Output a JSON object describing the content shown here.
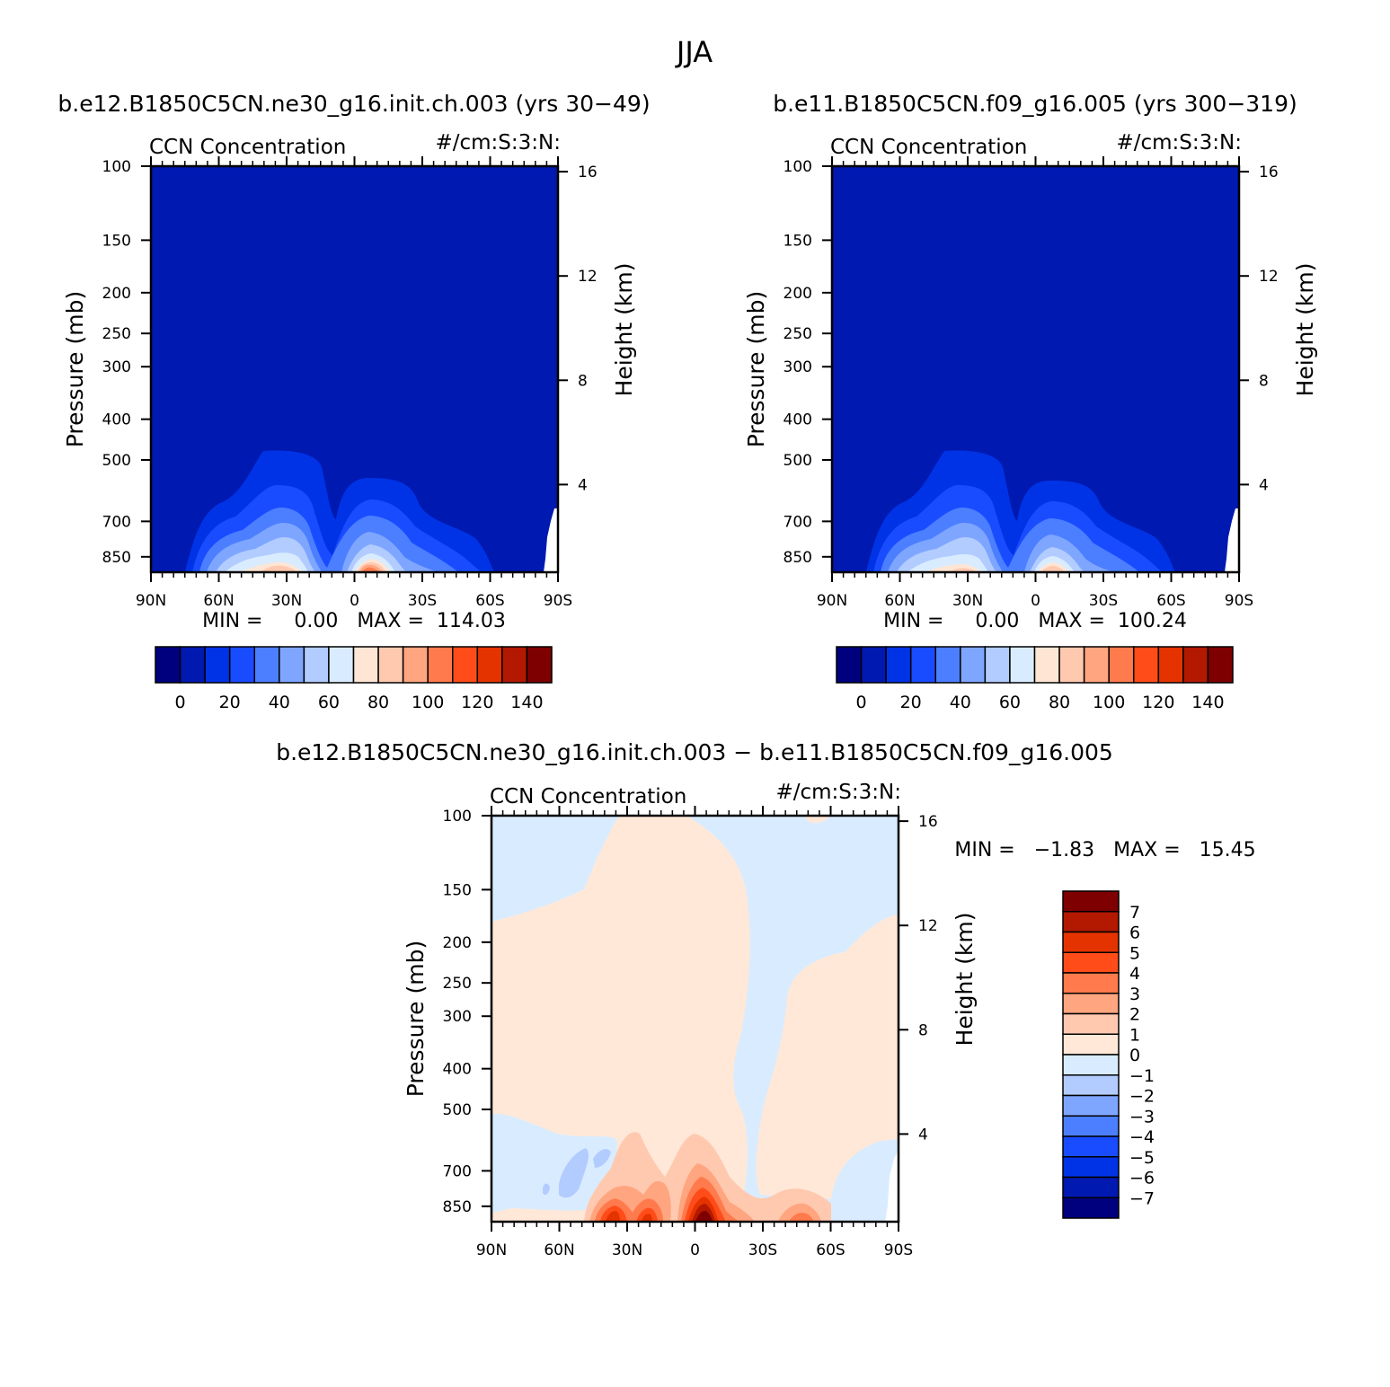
{
  "figure": {
    "title": "JJA",
    "difference_title": "b.e12.B1850C5CN.ne30_g16.init.ch.003 − b.e11.B1850C5CN.f09_g16.005"
  },
  "colors": {
    "abs_scale": [
      "#00007f",
      "#0019b1",
      "#0033e5",
      "#1a4cff",
      "#4c7fff",
      "#7fa6ff",
      "#b2ccff",
      "#d9ecff",
      "#ffe5d4",
      "#ffc9b0",
      "#ffa57f",
      "#ff7a4c",
      "#ff4c19",
      "#e53300",
      "#b21900",
      "#7f0000"
    ],
    "diff_scale": [
      "#00007f",
      "#0019b1",
      "#0033e5",
      "#1a4cff",
      "#4c7fff",
      "#7fa6ff",
      "#b2ccff",
      "#d9ecff",
      "#ffe8d8",
      "#ffc9b0",
      "#ffa57f",
      "#ff7a4c",
      "#ff4c19",
      "#e53300",
      "#b21900",
      "#7f0000"
    ]
  },
  "chart_data": [
    {
      "type": "heatmap",
      "panel": "case",
      "title": "b.e12.B1850C5CN.ne30_g16.init.ch.003 (yrs 30−49)",
      "field_label": "CCN Concentration",
      "units_label": "#/cm:S:3:N:",
      "ylabel": "Pressure (mb)",
      "ylabel_right": "Height (km)",
      "x_ticks": [
        "90N",
        "60N",
        "30N",
        "0",
        "30S",
        "60S",
        "90S"
      ],
      "y_ticks": [
        "100",
        "150",
        "200",
        "250",
        "300",
        "400",
        "500",
        "700",
        "850"
      ],
      "y_ticks_right": [
        "16",
        "12",
        "8",
        "4"
      ],
      "stats": "MIN =     0.00   MAX =  114.03",
      "colorbar_labels": [
        "0",
        "20",
        "40",
        "60",
        "80",
        "100",
        "120",
        "140"
      ],
      "min": 0.0,
      "max": 114.03
    },
    {
      "type": "heatmap",
      "panel": "control",
      "title": "b.e11.B1850C5CN.f09_g16.005 (yrs 300−319)",
      "field_label": "CCN Concentration",
      "units_label": "#/cm:S:3:N:",
      "ylabel": "Pressure (mb)",
      "ylabel_right": "Height (km)",
      "x_ticks": [
        "90N",
        "60N",
        "30N",
        "0",
        "30S",
        "60S",
        "90S"
      ],
      "y_ticks": [
        "100",
        "150",
        "200",
        "250",
        "300",
        "400",
        "500",
        "700",
        "850"
      ],
      "y_ticks_right": [
        "16",
        "12",
        "8",
        "4"
      ],
      "stats": "MIN =     0.00   MAX =  100.24",
      "colorbar_labels": [
        "0",
        "20",
        "40",
        "60",
        "80",
        "100",
        "120",
        "140"
      ],
      "min": 0.0,
      "max": 100.24
    },
    {
      "type": "heatmap",
      "panel": "difference",
      "field_label": "CCN Concentration",
      "units_label": "#/cm:S:3:N:",
      "ylabel": "Pressure (mb)",
      "ylabel_right": "Height (km)",
      "x_ticks": [
        "90N",
        "60N",
        "30N",
        "0",
        "30S",
        "60S",
        "90S"
      ],
      "y_ticks": [
        "100",
        "150",
        "200",
        "250",
        "300",
        "400",
        "500",
        "700",
        "850"
      ],
      "y_ticks_right": [
        "16",
        "12",
        "8",
        "4"
      ],
      "stats": "MIN =   −1.83   MAX =   15.45",
      "colorbar_labels": [
        "7",
        "6",
        "5",
        "4",
        "3",
        "2",
        "1",
        "0",
        "−1",
        "−2",
        "−3",
        "−4",
        "−5",
        "−6",
        "−7"
      ],
      "min": -1.83,
      "max": 15.45
    }
  ]
}
